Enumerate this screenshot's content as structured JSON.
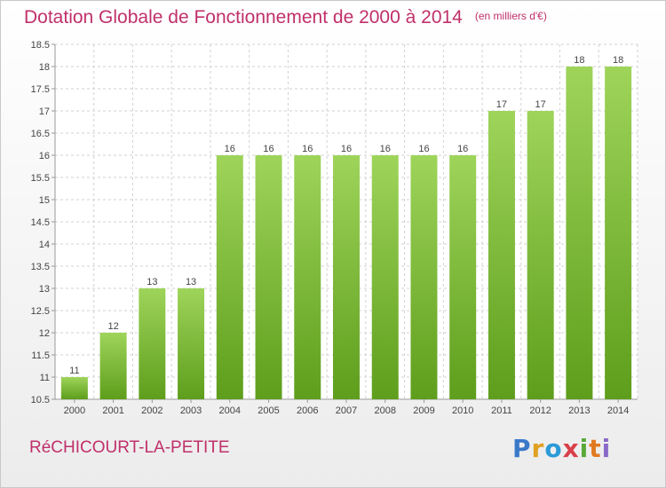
{
  "header": {
    "title": "Dotation Globale de Fonctionnement de 2000 à 2014",
    "unit": "(en milliers d'€)"
  },
  "footer": {
    "place": "RéCHICOURT-LA-PETITE",
    "logo_text": "Proxiti"
  },
  "colors": {
    "accent": "#c0306a",
    "bar_top": "#9ed45a",
    "bar_bottom": "#5e9e1c",
    "grid": "#d2d2d2"
  },
  "chart_data": {
    "type": "bar",
    "categories": [
      "2000",
      "2001",
      "2002",
      "2003",
      "2004",
      "2005",
      "2006",
      "2007",
      "2008",
      "2009",
      "2010",
      "2011",
      "2012",
      "2013",
      "2014"
    ],
    "values": [
      11,
      12,
      13,
      13,
      16,
      16,
      16,
      16,
      16,
      16,
      16,
      17,
      17,
      18,
      18
    ],
    "data_labels": [
      "11",
      "12",
      "13",
      "13",
      "16",
      "16",
      "16",
      "16",
      "16",
      "16",
      "16",
      "17",
      "17",
      "18",
      "18"
    ],
    "ylim": [
      10.5,
      18.5
    ],
    "yticks": [
      10.5,
      11,
      11.5,
      12,
      12.5,
      13,
      13.5,
      14,
      14.5,
      15,
      15.5,
      16,
      16.5,
      17,
      17.5,
      18,
      18.5
    ],
    "ytick_labels": [
      "10.5",
      "11",
      "11.5",
      "12",
      "12.5",
      "13",
      "13.5",
      "14",
      "14.5",
      "15",
      "15.5",
      "16",
      "16.5",
      "17",
      "17.5",
      "18",
      "18.5"
    ],
    "grid": true,
    "title": "Dotation Globale de Fonctionnement de 2000 à 2014",
    "xlabel": "",
    "ylabel": ""
  }
}
